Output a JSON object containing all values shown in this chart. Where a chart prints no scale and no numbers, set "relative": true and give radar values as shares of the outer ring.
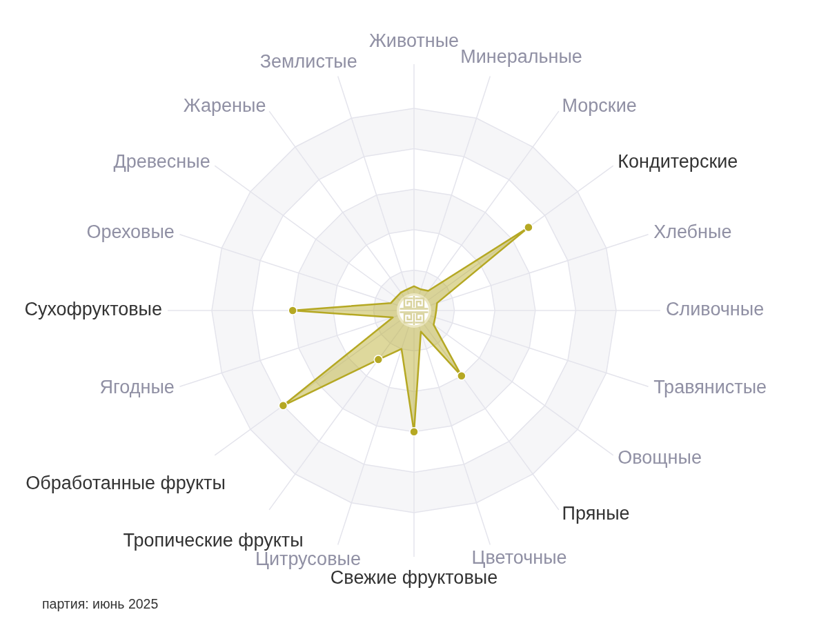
{
  "chart_data": {
    "type": "radar",
    "relative": true,
    "categories": [
      "Животные",
      "Минеральные",
      "Морские",
      "Кондитерские",
      "Хлебные",
      "Сливочные",
      "Травянистые",
      "Овощные",
      "Пряные",
      "Цветочные",
      "Свежие фруктовые",
      "Цитрусовые",
      "Тропические фрукты",
      "Обработанные фрукты",
      "Ягодные",
      "Сухофруктовые",
      "Ореховые",
      "Древесные",
      "Жареные",
      "Землистые"
    ],
    "series": [
      {
        "color": "#b5a823",
        "values": [
          0.12,
          0.11,
          0.12,
          0.7,
          0.12,
          0.11,
          0.11,
          0.12,
          0.4,
          0.11,
          0.6,
          0.2,
          0.3,
          0.8,
          0.11,
          0.6,
          0.12,
          0.11,
          0.11,
          0.11
        ],
        "colors": [
          null,
          null,
          null,
          "#b5a823",
          null,
          null,
          null,
          null,
          "#b5a823",
          null,
          "#b5a823",
          null,
          "#b5a823",
          "#b5a823",
          null,
          "#b5a823",
          null,
          null,
          null,
          null
        ]
      }
    ],
    "grid": true,
    "marker": "circle",
    "legend": false,
    "annotations": [
      "партия: июнь 2025"
    ]
  }
}
